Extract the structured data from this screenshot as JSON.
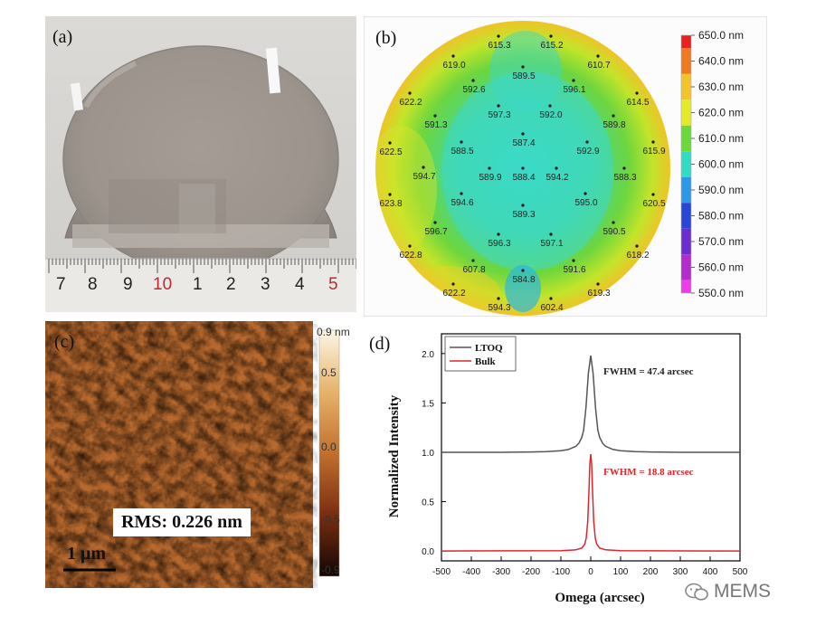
{
  "panels": {
    "a": {
      "label": "(a)",
      "ruler": {
        "numbers": [
          {
            "text": "7",
            "color": "#222222"
          },
          {
            "text": "8",
            "color": "#222222"
          },
          {
            "text": "9",
            "color": "#222222"
          },
          {
            "text": "10",
            "color": "#c0282d"
          },
          {
            "text": "1",
            "color": "#222222"
          },
          {
            "text": "2",
            "color": "#222222"
          },
          {
            "text": "3",
            "color": "#222222"
          },
          {
            "text": "4",
            "color": "#222222"
          },
          {
            "text": "5",
            "color": "#c0282d"
          }
        ]
      }
    },
    "b": {
      "label": "(b)",
      "colorbar": [
        "650.0 nm",
        "640.0 nm",
        "630.0 nm",
        "620.0 nm",
        "610.0 nm",
        "600.0 nm",
        "590.0 nm",
        "580.0 nm",
        "570.0 nm",
        "560.0 nm",
        "550.0 nm"
      ],
      "colorbar_colors": [
        "#e8201e",
        "#f07a22",
        "#f4c42a",
        "#e4ea28",
        "#6cd83a",
        "#32dcc4",
        "#2c98e8",
        "#2a46d6",
        "#6c2cd0",
        "#b42ccc",
        "#ee3ce8"
      ],
      "points": [
        "615.3",
        "615.2",
        "619.0",
        "610.7",
        "589.5",
        "592.6",
        "596.1",
        "622.2",
        "614.5",
        "597.3",
        "592.0",
        "591.3",
        "589.8",
        "587.4",
        "622.5",
        "588.5",
        "592.9",
        "615.9",
        "594.7",
        "589.9",
        "588.4",
        "594.2",
        "588.3",
        "594.6",
        "595.0",
        "623.8",
        "620.5",
        "589.3",
        "596.7",
        "590.5",
        "596.3",
        "597.1",
        "622.8",
        "618.2",
        "607.8",
        "591.6",
        "584.8",
        "622.2",
        "619.3",
        "594.3",
        "602.4"
      ]
    },
    "c": {
      "label": "(c)",
      "rms": "RMS: 0.226 nm",
      "scalebar": "1 μm",
      "colorbar_ticks": [
        "0.9 nm",
        "0.5",
        "0.0",
        "-0.5",
        "-0.9"
      ]
    },
    "d": {
      "label": "(d)",
      "legend": [
        "LTOQ",
        "Bulk"
      ],
      "fwhm_ltoq": "FWHM = 47.4 arcsec",
      "fwhm_bulk": "FWHM = 18.8 arcsec"
    }
  },
  "chart_data": {
    "type": "line",
    "title": "",
    "xlabel": "Omega (arcsec)",
    "ylabel": "Normalized Intensity",
    "xlim": [
      -500,
      500
    ],
    "ylim": [
      -0.1,
      2.2
    ],
    "x_ticks": [
      "-500",
      "-400",
      "-300",
      "-200",
      "-100",
      "0",
      "100",
      "200",
      "300",
      "400",
      "500"
    ],
    "y_ticks": [
      "0.0",
      "0.5",
      "1.0",
      "1.5",
      "2.0"
    ],
    "series": [
      {
        "name": "LTOQ",
        "color": "#555555",
        "x": [
          -500,
          -300,
          -200,
          -150,
          -100,
          -75,
          -50,
          -40,
          -30,
          -24,
          -16,
          -8,
          0,
          8,
          16,
          24,
          30,
          40,
          50,
          75,
          100,
          150,
          200,
          300,
          500
        ],
        "y": [
          1.0,
          1.0,
          1.003,
          1.007,
          1.016,
          1.028,
          1.06,
          1.09,
          1.15,
          1.22,
          1.45,
          1.8,
          1.98,
          1.8,
          1.45,
          1.22,
          1.15,
          1.09,
          1.06,
          1.028,
          1.016,
          1.007,
          1.003,
          1.0,
          1.0
        ]
      },
      {
        "name": "Bulk",
        "color": "#e0252a",
        "x": [
          -500,
          -100,
          -50,
          -30,
          -20,
          -15,
          -10,
          -6,
          -3,
          0,
          3,
          6,
          10,
          15,
          20,
          30,
          50,
          100,
          500
        ],
        "y": [
          0.0,
          0.003,
          0.012,
          0.03,
          0.07,
          0.13,
          0.3,
          0.6,
          0.88,
          0.98,
          0.88,
          0.6,
          0.3,
          0.13,
          0.07,
          0.03,
          0.012,
          0.003,
          0.0
        ]
      }
    ]
  },
  "watermark": "MEMS"
}
